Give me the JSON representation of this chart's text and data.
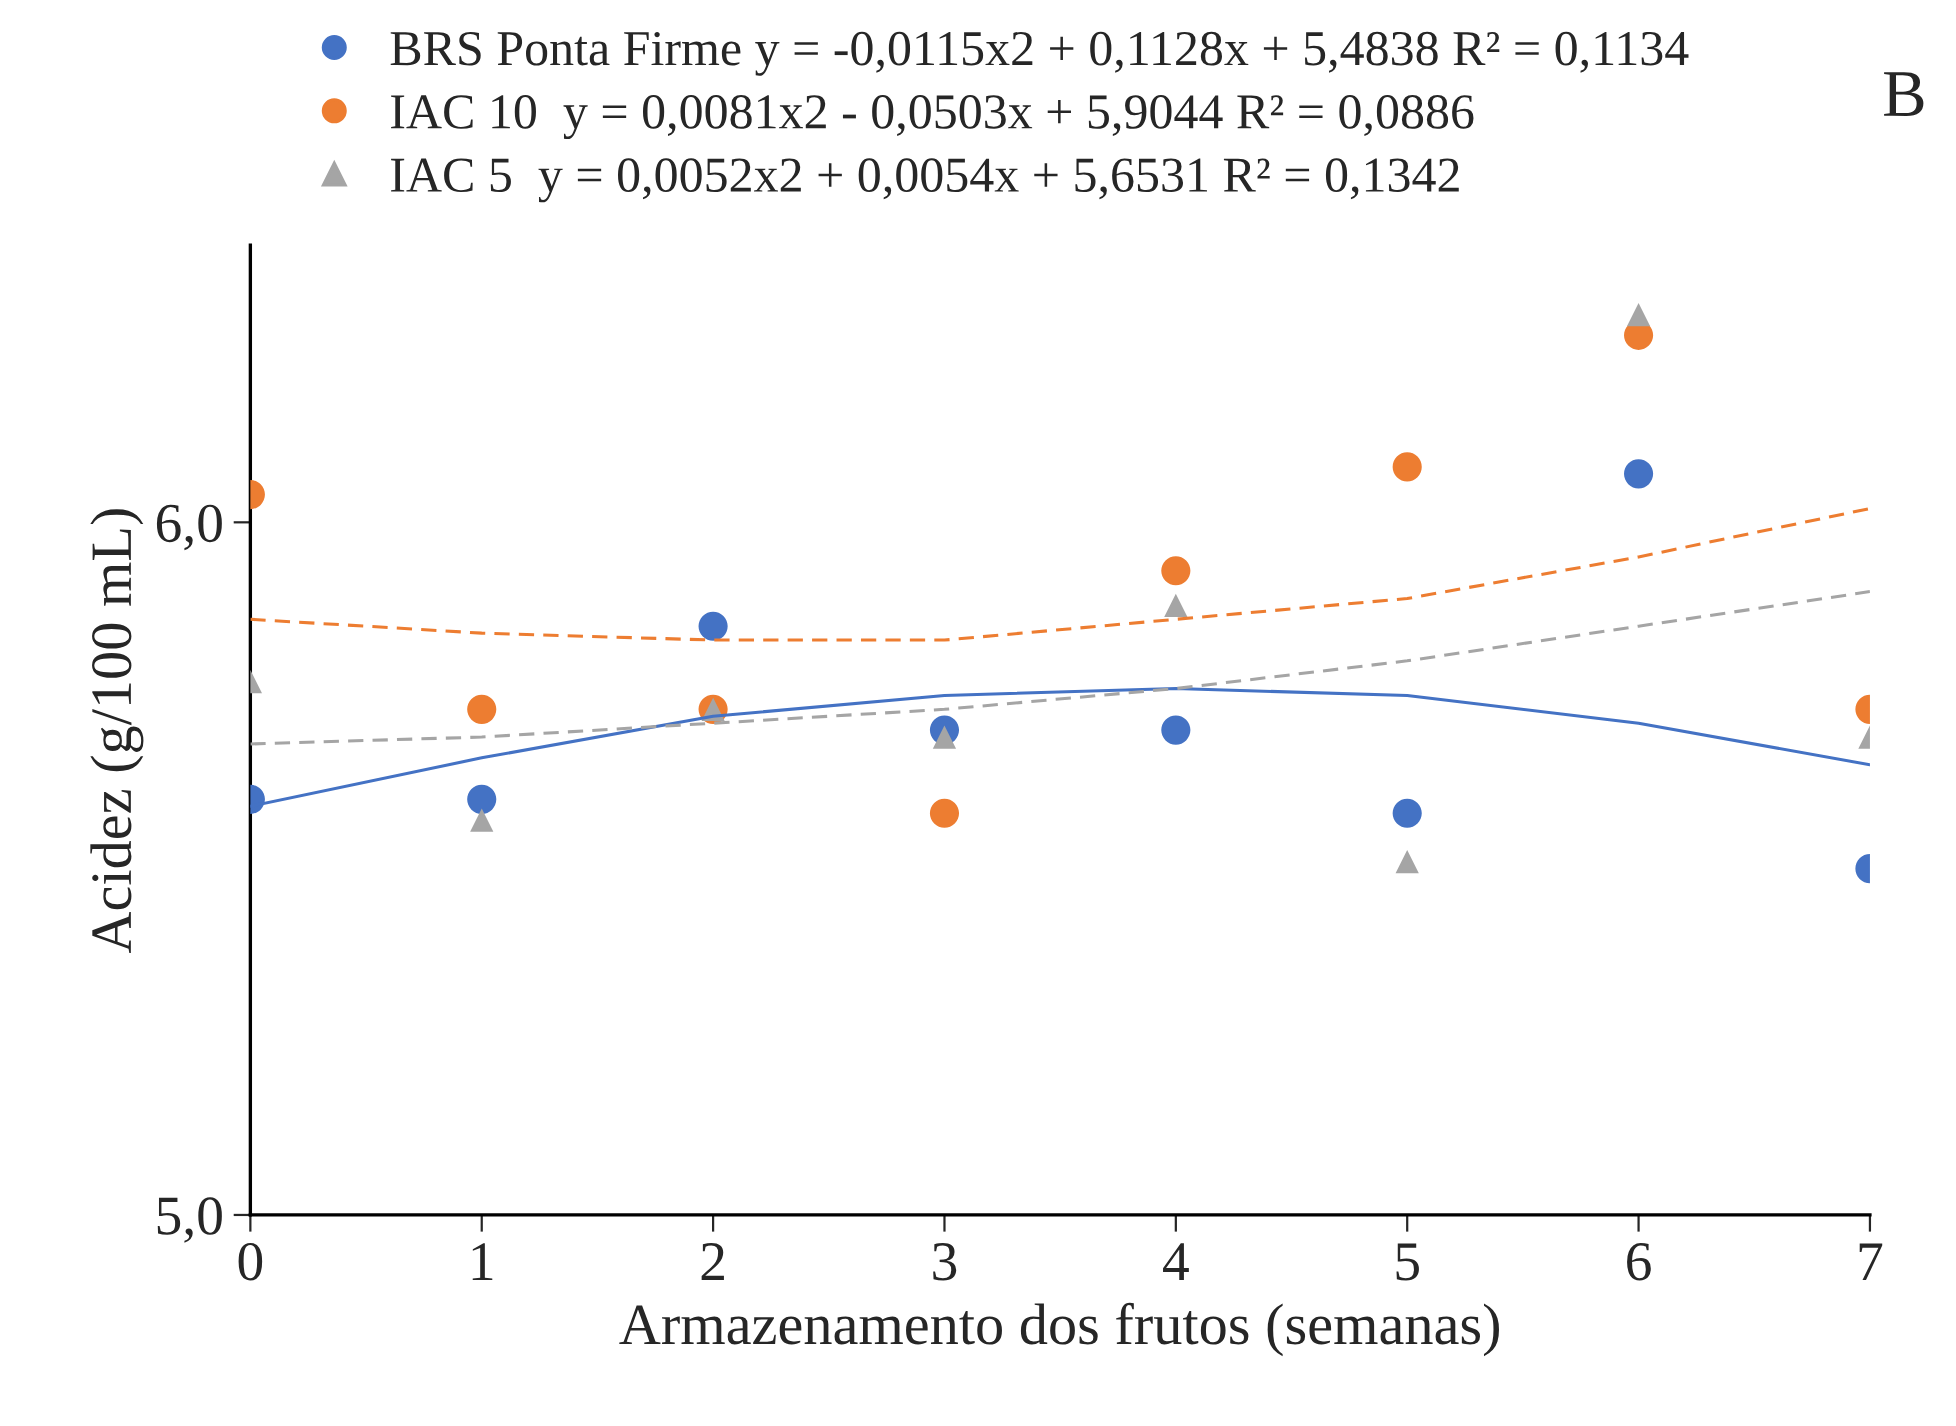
{
  "chart_data": {
    "type": "scatter",
    "xlabel": "Armazenamento dos frutos (semanas)",
    "ylabel": "Acidez (g/100 mL)",
    "x": [
      0,
      1,
      2,
      3,
      4,
      5,
      6,
      7
    ],
    "xlim": [
      0,
      7
    ],
    "xticks": [
      0,
      1,
      2,
      3,
      4,
      5,
      6,
      7
    ],
    "ylim": [
      5.0,
      6.4
    ],
    "yticks": [
      {
        "value": 5.0,
        "label": "5,0"
      },
      {
        "value": 6.0,
        "label": "6,0"
      }
    ],
    "grid": false,
    "legend": "top",
    "annotations": [
      "B"
    ],
    "series": [
      {
        "name": "BRS Ponta Firme y = -0,0115x2 + 0,1128x + 5,4838 R² = 0,1134",
        "color": "#4472c4",
        "marker": "circle",
        "values": [
          5.6,
          5.6,
          5.85,
          5.7,
          5.7,
          5.58,
          6.07,
          5.5
        ]
      },
      {
        "name": "IAC 10  y = 0,0081x2 - 0,0503x + 5,9044 R² = 0,0886",
        "color": "#ed7d31",
        "marker": "circle",
        "values": [
          6.04,
          5.73,
          5.73,
          5.58,
          5.93,
          6.08,
          6.27,
          5.73
        ]
      },
      {
        "name": "IAC 5  y = 0,0052x2 + 0,0054x + 5,6531 R² = 0,1342",
        "color": "#a5a5a5",
        "marker": "triangle",
        "values": [
          5.77,
          5.57,
          5.73,
          5.69,
          5.88,
          5.51,
          6.3,
          5.69
        ]
      },
      {
        "type": "line",
        "color": "#4472c4",
        "line_style": "solid",
        "marker": "none",
        "x": [
          0,
          1,
          2,
          3,
          4,
          5,
          6,
          7
        ],
        "values": [
          5.59,
          5.66,
          5.72,
          5.75,
          5.76,
          5.75,
          5.71,
          5.65
        ]
      },
      {
        "type": "line",
        "color": "#ed7d31",
        "line_style": "dashed",
        "marker": "none",
        "x": [
          0,
          1,
          2,
          3,
          4,
          5,
          6,
          7
        ],
        "values": [
          5.86,
          5.84,
          5.83,
          5.83,
          5.86,
          5.89,
          5.95,
          6.02
        ]
      },
      {
        "type": "line",
        "color": "#a5a5a5",
        "line_style": "dashed",
        "marker": "none",
        "x": [
          0,
          1,
          2,
          3,
          4,
          5,
          6,
          7
        ],
        "values": [
          5.68,
          5.69,
          5.71,
          5.73,
          5.76,
          5.8,
          5.85,
          5.9
        ]
      }
    ]
  }
}
